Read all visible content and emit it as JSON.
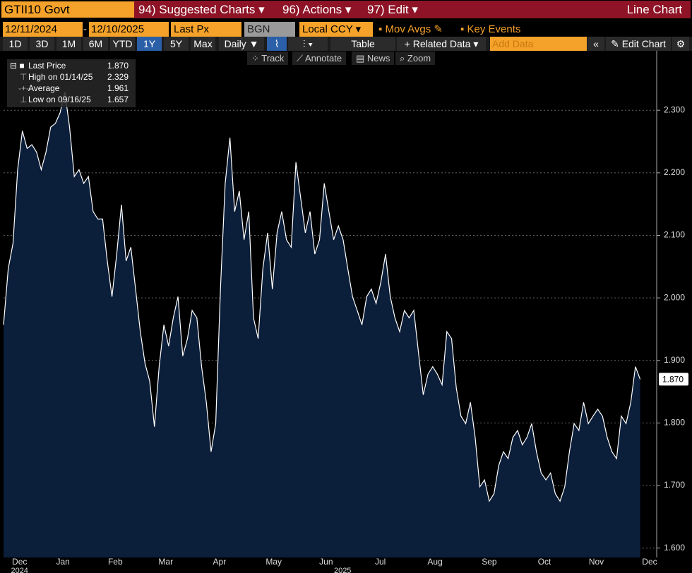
{
  "toolbar": {
    "security": "GTII10 Govt",
    "menus": [
      "94) Suggested Charts",
      "96) Actions",
      "97) Edit"
    ],
    "chart_kind": "Line Chart",
    "start_date": "12/11/2024",
    "end_date": "12/10/2025",
    "field": "Last Px",
    "source": "BGN",
    "currency": "Local CCY",
    "options": [
      "Mov Avgs",
      "Key Events"
    ],
    "periods": [
      "1D",
      "3D",
      "1M",
      "6M",
      "YTD",
      "1Y",
      "5Y",
      "Max"
    ],
    "active_period": "1Y",
    "frequency": "Daily",
    "table": "Table",
    "related": "Related Data",
    "add_data": "Add Data",
    "edit_chart": "Edit Chart",
    "tools": [
      "Track",
      "Annotate",
      "News",
      "Zoom"
    ]
  },
  "chart_data": {
    "type": "line",
    "series": [
      {
        "name": "Last Price",
        "color": "#ffffff",
        "fill": "#0b1e3a",
        "values": [
          1.957,
          2.047,
          2.087,
          2.205,
          2.267,
          2.239,
          2.245,
          2.233,
          2.205,
          2.233,
          2.273,
          2.279,
          2.296,
          2.329,
          2.273,
          2.194,
          2.205,
          2.183,
          2.194,
          2.138,
          2.126,
          2.126,
          2.059,
          2.002,
          2.07,
          2.149,
          2.059,
          2.081,
          2.014,
          1.946,
          1.895,
          1.867,
          1.794,
          1.89,
          1.957,
          1.923,
          1.968,
          2.002,
          1.907,
          1.935,
          1.98,
          1.968,
          1.89,
          1.833,
          1.754,
          1.799,
          2.014,
          2.183,
          2.256,
          2.138,
          2.171,
          2.093,
          2.138,
          1.968,
          1.935,
          2.047,
          2.104,
          2.014,
          2.104,
          2.138,
          2.093,
          2.081,
          2.217,
          2.16,
          2.104,
          2.138,
          2.07,
          2.093,
          2.183,
          2.138,
          2.093,
          2.115,
          2.093,
          2.047,
          2.002,
          1.98,
          1.957,
          2.002,
          2.014,
          1.991,
          2.025,
          2.07,
          2.002,
          1.968,
          1.946,
          1.98,
          1.968,
          1.98,
          1.912,
          1.845,
          1.878,
          1.89,
          1.878,
          1.861,
          1.946,
          1.935,
          1.856,
          1.811,
          1.799,
          1.833,
          1.777,
          1.698,
          1.709,
          1.675,
          1.687,
          1.732,
          1.754,
          1.743,
          1.777,
          1.788,
          1.765,
          1.777,
          1.799,
          1.754,
          1.72,
          1.709,
          1.72,
          1.687,
          1.675,
          1.698,
          1.754,
          1.799,
          1.788,
          1.833,
          1.799,
          1.811,
          1.822,
          1.811,
          1.777,
          1.754,
          1.743,
          1.811,
          1.799,
          1.833,
          1.89,
          1.87
        ]
      }
    ],
    "last_value": {
      "value": 1.87,
      "label": "1.870"
    },
    "stats": [
      {
        "label": "High on 01/14/25",
        "value": {
          "value": 2.329,
          "label": "2.329"
        }
      },
      {
        "label": "Average",
        "value": {
          "value": 1.961,
          "label": "1.961"
        }
      },
      {
        "label": "Low on 09/16/25",
        "value": {
          "value": 1.657,
          "label": "1.657"
        }
      }
    ],
    "xlim": [
      0,
      138.5
    ],
    "ylim": [
      1.585,
      2.395
    ],
    "xticks": [
      {
        "value": 3.4,
        "label": "Dec"
      },
      {
        "value": 12.6,
        "label": "Jan"
      },
      {
        "value": 23.7,
        "label": "Feb"
      },
      {
        "value": 34.4,
        "label": "Mar"
      },
      {
        "value": 45.8,
        "label": "Apr"
      },
      {
        "value": 57.3,
        "label": "May"
      },
      {
        "value": 68.4,
        "label": "Jun"
      },
      {
        "value": 79.9,
        "label": "Jul"
      },
      {
        "value": 91.5,
        "label": "Aug"
      },
      {
        "value": 103,
        "label": "Sep"
      },
      {
        "value": 114.7,
        "label": "Oct"
      },
      {
        "value": 125.7,
        "label": "Nov"
      },
      {
        "value": 137,
        "label": "Dec"
      }
    ],
    "xyears": [
      {
        "value": 3.4,
        "label": "2024"
      },
      {
        "value": 71.9,
        "label": "2025"
      }
    ],
    "yticks": [
      {
        "value": 1.6,
        "label": "1.600"
      },
      {
        "value": 1.7,
        "label": "1.700"
      },
      {
        "value": 1.8,
        "label": "1.800"
      },
      {
        "value": 1.9,
        "label": "1.900"
      },
      {
        "value": 2.0,
        "label": "2.000"
      },
      {
        "value": 2.1,
        "label": "2.100"
      },
      {
        "value": 2.2,
        "label": "2.200"
      },
      {
        "value": 2.3,
        "label": "2.300"
      }
    ],
    "grid": true
  }
}
